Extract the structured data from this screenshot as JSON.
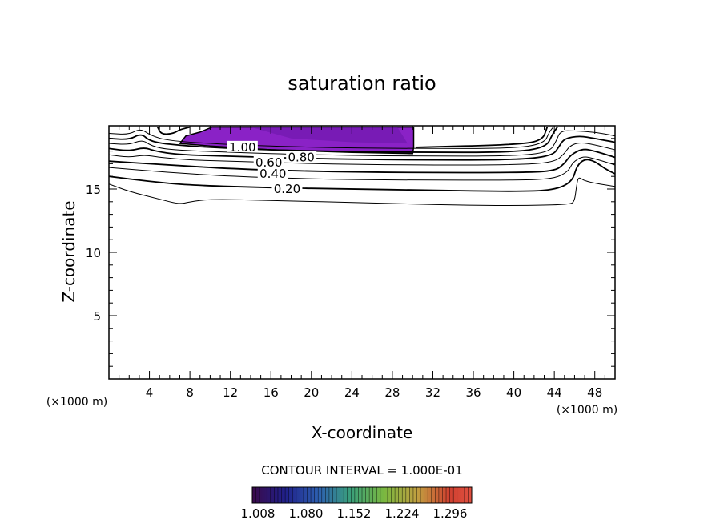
{
  "chart_data": {
    "type": "contour",
    "title": "saturation ratio",
    "xlabel": "X-coordinate",
    "ylabel": "Z-coordinate",
    "x_unit": "(×1000 m)",
    "y_unit": "(×1000 m)",
    "xlim": [
      0,
      50
    ],
    "ylim": [
      0,
      20
    ],
    "x_ticks": [
      4,
      8,
      12,
      16,
      20,
      24,
      28,
      32,
      36,
      40,
      44,
      48
    ],
    "y_ticks": [
      5,
      10,
      15
    ],
    "contour_interval_text": "CONTOUR INTERVAL = 1.000E-01",
    "colorbar_ticks": [
      "1.008",
      "1.080",
      "1.152",
      "1.224",
      "1.296"
    ],
    "colors": {
      "supersaturated_fill": "#8a22c6",
      "supersaturated_fill_dark": "#6a16a8",
      "line": "#000000"
    },
    "contour_labels": [
      {
        "text": "1.00",
        "x": 13.2,
        "z": 18.3
      },
      {
        "text": "0.80",
        "x": 19.0,
        "z": 17.5
      },
      {
        "text": "0.60",
        "x": 15.8,
        "z": 17.1
      },
      {
        "text": "0.40",
        "x": 16.2,
        "z": 16.2
      },
      {
        "text": "0.20",
        "x": 17.6,
        "z": 15.0
      }
    ],
    "supersaturated_region": [
      [
        7.0,
        18.6
      ],
      [
        7.6,
        19.2
      ],
      [
        9.0,
        19.5
      ],
      [
        10.2,
        19.9
      ],
      [
        30.1,
        19.9
      ],
      [
        30.1,
        18.3
      ],
      [
        30.0,
        17.8
      ],
      [
        24.0,
        17.9
      ],
      [
        16.0,
        18.1
      ],
      [
        10.0,
        18.4
      ],
      [
        7.0,
        18.6
      ]
    ],
    "contours": [
      {
        "level": 0.1,
        "points": [
          [
            0,
            15.4
          ],
          [
            2.0,
            14.8
          ],
          [
            5.0,
            14.2
          ],
          [
            7.0,
            13.8
          ],
          [
            8.0,
            14.0
          ],
          [
            10.0,
            14.2
          ],
          [
            16.0,
            14.1
          ],
          [
            26.0,
            13.9
          ],
          [
            36.0,
            13.7
          ],
          [
            42.0,
            13.7
          ],
          [
            45.5,
            13.8
          ],
          [
            46.0,
            14.0
          ],
          [
            46.2,
            15.3
          ],
          [
            46.4,
            16.0
          ],
          [
            47.0,
            15.6
          ],
          [
            50,
            15.2
          ]
        ]
      },
      {
        "level": 0.2,
        "points": [
          [
            0,
            16.0
          ],
          [
            4.0,
            15.6
          ],
          [
            8.0,
            15.3
          ],
          [
            16.0,
            15.1
          ],
          [
            24.0,
            15.0
          ],
          [
            32.0,
            14.9
          ],
          [
            40.0,
            14.8
          ],
          [
            44.0,
            14.9
          ],
          [
            45.8,
            15.6
          ],
          [
            46.2,
            16.8
          ],
          [
            47.0,
            17.4
          ],
          [
            48.0,
            17.2
          ],
          [
            49.0,
            16.6
          ],
          [
            50,
            16.2
          ]
        ]
      },
      {
        "level": 0.3,
        "points": [
          [
            0,
            16.7
          ],
          [
            6.0,
            16.3
          ],
          [
            12.0,
            16.0
          ],
          [
            20.0,
            15.8
          ],
          [
            30.0,
            15.7
          ],
          [
            40.0,
            15.7
          ],
          [
            44.0,
            15.8
          ],
          [
            45.4,
            16.4
          ],
          [
            45.8,
            17.1
          ],
          [
            46.8,
            17.6
          ],
          [
            48.0,
            17.4
          ],
          [
            50,
            16.9
          ]
        ]
      },
      {
        "level": 0.4,
        "points": [
          [
            0,
            17.2
          ],
          [
            6.0,
            16.9
          ],
          [
            12.0,
            16.6
          ],
          [
            20.0,
            16.4
          ],
          [
            30.0,
            16.3
          ],
          [
            40.0,
            16.3
          ],
          [
            44.0,
            16.4
          ],
          [
            45.0,
            17.0
          ],
          [
            45.6,
            17.7
          ],
          [
            46.8,
            18.2
          ],
          [
            48.0,
            18.0
          ],
          [
            50,
            17.5
          ]
        ]
      },
      {
        "level": 0.5,
        "points": [
          [
            0,
            17.7
          ],
          [
            2.0,
            17.5
          ],
          [
            3.5,
            17.7
          ],
          [
            5.0,
            17.5
          ],
          [
            8.0,
            17.3
          ],
          [
            12.0,
            17.2
          ],
          [
            20.0,
            17.0
          ],
          [
            30.0,
            16.9
          ],
          [
            40.0,
            16.9
          ],
          [
            44.0,
            17.1
          ],
          [
            45.0,
            17.8
          ],
          [
            45.5,
            18.4
          ],
          [
            46.5,
            18.7
          ],
          [
            48.0,
            18.5
          ],
          [
            50,
            18.1
          ]
        ]
      },
      {
        "level": 0.6,
        "points": [
          [
            0,
            18.2
          ],
          [
            2.0,
            18.0
          ],
          [
            3.5,
            18.3
          ],
          [
            4.5,
            18.0
          ],
          [
            7.0,
            17.7
          ],
          [
            12.0,
            17.6
          ],
          [
            20.0,
            17.4
          ],
          [
            30.0,
            17.3
          ],
          [
            40.0,
            17.3
          ],
          [
            43.8,
            17.6
          ],
          [
            44.5,
            18.4
          ],
          [
            45.0,
            19.0
          ],
          [
            46.5,
            19.2
          ],
          [
            48.0,
            19.0
          ],
          [
            50,
            18.7
          ]
        ]
      },
      {
        "level": 0.7,
        "points": [
          [
            0,
            18.6
          ],
          [
            2.0,
            18.5
          ],
          [
            3.3,
            18.9
          ],
          [
            4.2,
            18.4
          ],
          [
            6.0,
            18.1
          ],
          [
            12.0,
            17.9
          ],
          [
            20.0,
            17.7
          ],
          [
            30.0,
            17.6
          ],
          [
            40.0,
            17.6
          ],
          [
            43.5,
            17.9
          ],
          [
            44.2,
            18.8
          ],
          [
            44.6,
            19.6
          ],
          [
            46.0,
            19.6
          ],
          [
            48.0,
            19.5
          ],
          [
            50,
            19.2
          ]
        ]
      },
      {
        "level": 0.8,
        "points": [
          [
            0,
            19.0
          ],
          [
            2.0,
            18.9
          ],
          [
            3.2,
            19.4
          ],
          [
            4.0,
            18.8
          ],
          [
            6.0,
            18.5
          ],
          [
            12.0,
            18.2
          ],
          [
            20.0,
            18.0
          ],
          [
            30.0,
            17.9
          ],
          [
            40.0,
            17.9
          ],
          [
            43.2,
            18.3
          ],
          [
            43.8,
            19.3
          ],
          [
            44.3,
            19.9
          ]
        ]
      },
      {
        "level": 0.9,
        "points": [
          [
            0,
            19.4
          ],
          [
            2.0,
            19.3
          ],
          [
            3.1,
            19.8
          ],
          [
            4.2,
            19.2
          ],
          [
            6.0,
            18.8
          ],
          [
            12.0,
            18.5
          ],
          [
            20.0,
            18.3
          ],
          [
            30.0,
            18.2
          ],
          [
            40.0,
            18.2
          ],
          [
            43.0,
            18.6
          ],
          [
            43.5,
            19.5
          ],
          [
            43.9,
            19.9
          ]
        ]
      },
      {
        "level": 1.0,
        "points": [
          [
            4.8,
            19.9
          ],
          [
            5.2,
            19.3
          ],
          [
            6.4,
            19.4
          ],
          [
            7.0,
            19.7
          ],
          [
            8.0,
            19.9
          ]
        ]
      },
      {
        "level": 1.0,
        "points": [
          [
            30.3,
            18.3
          ],
          [
            40.0,
            18.5
          ],
          [
            42.8,
            18.8
          ],
          [
            43.3,
            19.9
          ]
        ]
      }
    ]
  }
}
